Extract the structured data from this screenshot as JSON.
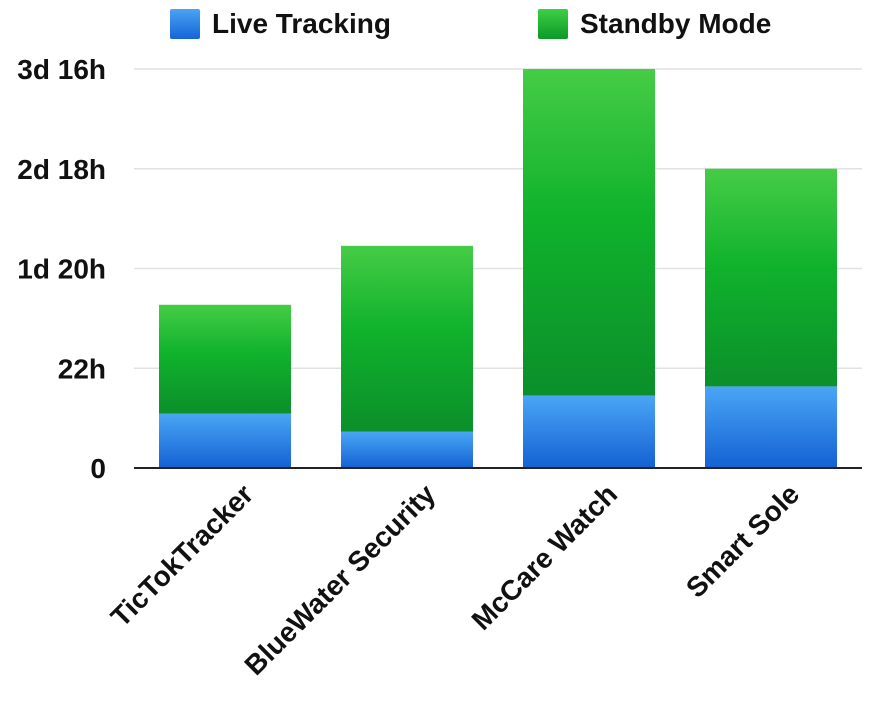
{
  "chart_data": {
    "type": "bar",
    "stacked": true,
    "categories": [
      "TicTokTracker",
      "BlueWater Security",
      "McCare Watch",
      "Smart Sole"
    ],
    "series": [
      {
        "name": "Live Tracking",
        "values": [
          12,
          8,
          16,
          18
        ],
        "color": "#1e7fe0"
      },
      {
        "name": "Standby Mode",
        "values": [
          24,
          41,
          72,
          48
        ],
        "color": "#0fb02a"
      }
    ],
    "value_unit": "hours",
    "yticks": [
      {
        "value": 0,
        "label": "0"
      },
      {
        "value": 22,
        "label": "22h"
      },
      {
        "value": 44,
        "label": "1d 20h"
      },
      {
        "value": 66,
        "label": "2d 18h"
      },
      {
        "value": 88,
        "label": "3d 16h"
      }
    ],
    "ylim": [
      0,
      88
    ],
    "grid": true,
    "legend_position": "top"
  }
}
